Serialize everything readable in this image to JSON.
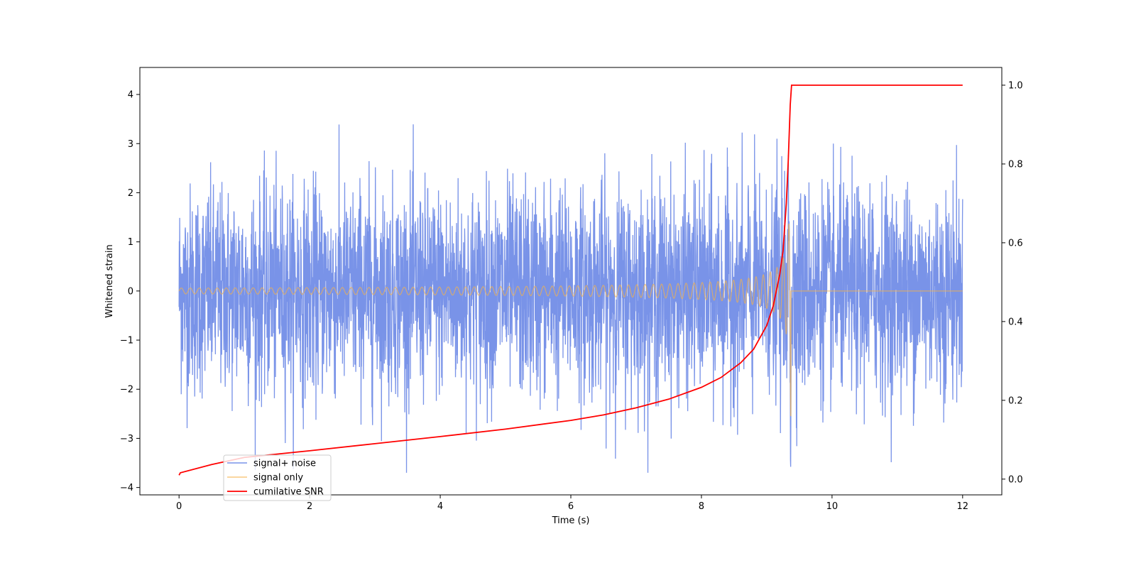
{
  "chart_data": {
    "type": "line",
    "title": "",
    "xlabel": "Time (s)",
    "ylabel": "Whitened strain",
    "y2label": "",
    "xlim": [
      -0.6,
      12.6
    ],
    "ylim": [
      -4.15,
      4.55
    ],
    "y2lim": [
      -0.04,
      1.045
    ],
    "x_ticks": [
      0,
      2,
      4,
      6,
      8,
      10,
      12
    ],
    "x_tick_labels": [
      "0",
      "2",
      "4",
      "6",
      "8",
      "10",
      "12"
    ],
    "y_ticks": [
      -4,
      -3,
      -2,
      -1,
      0,
      1,
      2,
      3,
      4
    ],
    "y_tick_labels": [
      "−4",
      "−3",
      "−2",
      "−1",
      "0",
      "1",
      "2",
      "3",
      "4"
    ],
    "y2_ticks": [
      0.0,
      0.2,
      0.4,
      0.6,
      0.8,
      1.0
    ],
    "y2_tick_labels": [
      "0.0",
      "0.2",
      "0.4",
      "0.6",
      "0.8",
      "1.0"
    ],
    "grid": false,
    "legend_position": "lower-left",
    "series": [
      {
        "name": "signal+ noise",
        "color": "#4c6fe0",
        "axis": "left",
        "description_values": {
          "t_start": 0,
          "t_end": 12,
          "envelope_min": -3.7,
          "envelope_max": 3.65
        }
      },
      {
        "name": "signal only",
        "color": "#f5b24a",
        "axis": "left",
        "description_values": {
          "t_start": 0,
          "t_merger": 9.37,
          "t_end": 12,
          "peak_amplitude": 2.6
        }
      },
      {
        "name": "cumilative SNR",
        "color": "#ff0000",
        "axis": "right",
        "x": [
          0,
          0.02,
          0.5,
          1,
          2,
          3,
          4,
          5,
          6,
          6.5,
          7,
          7.5,
          8,
          8.3,
          8.6,
          8.8,
          9.0,
          9.1,
          9.2,
          9.25,
          9.3,
          9.33,
          9.36,
          9.38,
          10,
          12
        ],
        "values": [
          0.01,
          0.016,
          0.037,
          0.055,
          0.072,
          0.09,
          0.108,
          0.127,
          0.149,
          0.163,
          0.181,
          0.203,
          0.233,
          0.258,
          0.295,
          0.33,
          0.39,
          0.44,
          0.52,
          0.58,
          0.7,
          0.81,
          0.95,
          1.0,
          1.0,
          1.0
        ]
      }
    ]
  }
}
